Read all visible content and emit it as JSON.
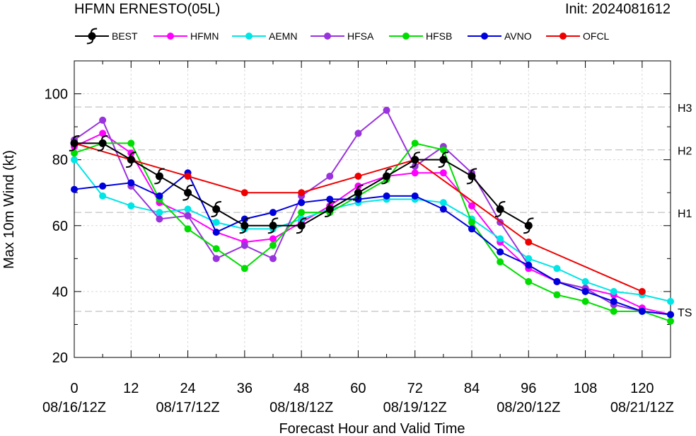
{
  "header": {
    "title": "HFMN ERNESTO(05L)",
    "init": "Init: 2024081612"
  },
  "chart_data": {
    "type": "line",
    "xlabel": "Forecast Hour and Valid Time",
    "ylabel": "Max 10m Wind (kt)",
    "xlim": [
      0,
      126
    ],
    "ylim": [
      20,
      110
    ],
    "x_ticks": [
      0,
      12,
      24,
      36,
      48,
      60,
      72,
      84,
      96,
      108,
      120
    ],
    "x_tick_labels": [
      "0",
      "12",
      "24",
      "36",
      "48",
      "60",
      "72",
      "84",
      "96",
      "108",
      "120"
    ],
    "y_ticks": [
      20,
      40,
      60,
      80,
      100
    ],
    "y_tick_labels": [
      "20",
      "40",
      "60",
      "80",
      "100"
    ],
    "date_labels": [
      {
        "x": 0,
        "label": "08/16/12Z"
      },
      {
        "x": 24,
        "label": "08/17/12Z"
      },
      {
        "x": 48,
        "label": "08/18/12Z"
      },
      {
        "x": 72,
        "label": "08/19/12Z"
      },
      {
        "x": 96,
        "label": "08/20/12Z"
      },
      {
        "x": 120,
        "label": "08/21/12Z"
      }
    ],
    "thresholds": [
      {
        "label": "TS",
        "value": 34
      },
      {
        "label": "H1",
        "value": 64
      },
      {
        "label": "H2",
        "value": 83
      },
      {
        "label": "H3",
        "value": 96
      }
    ],
    "grid": true,
    "legend_position": "top",
    "series": [
      {
        "name": "BEST",
        "color": "#000000",
        "marker": "hurricane-symbol",
        "x": [
          0,
          6,
          12,
          18,
          24,
          30,
          36,
          42,
          48,
          54,
          60,
          66,
          72,
          78,
          84,
          90,
          96
        ],
        "y": [
          85,
          85,
          80,
          75,
          70,
          65,
          60,
          60,
          60,
          65,
          70,
          75,
          80,
          80,
          75,
          65,
          60
        ]
      },
      {
        "name": "HFMN",
        "color": "#ff00ff",
        "marker": "circle",
        "x": [
          0,
          6,
          12,
          18,
          24,
          30,
          36,
          42,
          48,
          54,
          60,
          66,
          72,
          78,
          84,
          90,
          96,
          102,
          108,
          114,
          120,
          126
        ],
        "y": [
          84,
          88,
          82,
          67,
          63,
          58,
          55,
          56,
          61,
          66,
          72,
          75,
          76,
          76,
          66,
          55,
          47,
          43,
          41,
          39,
          35,
          33
        ]
      },
      {
        "name": "AEMN",
        "color": "#00e5e5",
        "marker": "circle",
        "x": [
          0,
          6,
          12,
          18,
          24,
          30,
          36,
          42,
          48,
          54,
          60,
          66,
          72,
          78,
          84,
          90,
          96,
          102,
          108,
          114,
          120,
          126
        ],
        "y": [
          80,
          69,
          66,
          64,
          65,
          61,
          59,
          59,
          62,
          65,
          67,
          68,
          68,
          67,
          62,
          56,
          50,
          47,
          43,
          40,
          39,
          37
        ]
      },
      {
        "name": "HFSA",
        "color": "#9933dd",
        "marker": "circle",
        "x": [
          0,
          6,
          12,
          18,
          24,
          30,
          36,
          42,
          48,
          54,
          60,
          66,
          72,
          78,
          84,
          90,
          96,
          102,
          108,
          114,
          120,
          126
        ],
        "y": [
          86,
          92,
          72,
          62,
          63,
          50,
          54,
          50,
          69,
          75,
          88,
          95,
          78,
          84,
          76,
          61,
          48,
          43,
          41,
          36,
          34,
          33
        ]
      },
      {
        "name": "HFSB",
        "color": "#00dd00",
        "marker": "circle",
        "x": [
          0,
          6,
          12,
          18,
          24,
          30,
          36,
          42,
          48,
          54,
          60,
          66,
          72,
          78,
          84,
          90,
          96,
          102,
          108,
          114,
          120,
          126
        ],
        "y": [
          82,
          85,
          85,
          68,
          59,
          53,
          47,
          54,
          64,
          64,
          69,
          74,
          85,
          83,
          61,
          49,
          43,
          39,
          37,
          34,
          34,
          31
        ]
      },
      {
        "name": "AVNO",
        "color": "#0000dd",
        "marker": "circle",
        "x": [
          0,
          6,
          12,
          18,
          24,
          30,
          36,
          42,
          48,
          54,
          60,
          66,
          72,
          78,
          84,
          90,
          96,
          102,
          108,
          114,
          120,
          126
        ],
        "y": [
          71,
          72,
          73,
          69,
          76,
          58,
          62,
          64,
          67,
          68,
          68,
          69,
          69,
          65,
          59,
          52,
          48,
          43,
          40,
          37,
          34,
          33
        ]
      },
      {
        "name": "OFCL",
        "color": "#ee0000",
        "marker": "circle",
        "x": [
          0,
          12,
          24,
          36,
          48,
          60,
          72,
          96,
          120
        ],
        "y": [
          85,
          80,
          75,
          70,
          70,
          75,
          80,
          55,
          40
        ]
      }
    ]
  }
}
